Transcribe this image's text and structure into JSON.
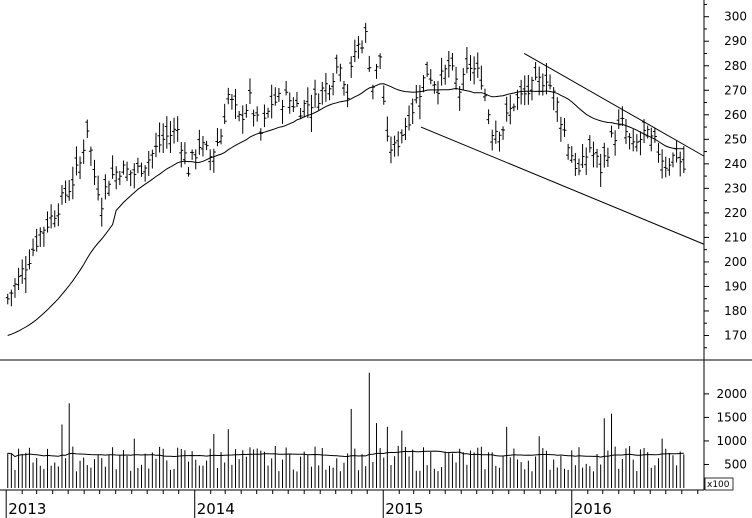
{
  "chart_data": [
    {
      "type": "ohlc",
      "panel": "price",
      "y_ticks": [
        170,
        180,
        190,
        200,
        210,
        220,
        230,
        240,
        250,
        260,
        270,
        280,
        290,
        300
      ],
      "ylim": [
        160,
        306
      ],
      "moving_average": true,
      "trend_channel": {
        "upper": {
          "x": [
            "2015-10-01",
            "2016-08-12"
          ],
          "y": [
            285,
            247
          ]
        },
        "lower": {
          "x": [
            "2015-03-15",
            "2016-08-12"
          ],
          "y": [
            255,
            210
          ]
        }
      },
      "weekly_close_anchors": [
        [
          "2013-01-04",
          185
        ],
        [
          "2013-01-25",
          193
        ],
        [
          "2013-02-15",
          202
        ],
        [
          "2013-03-08",
          212
        ],
        [
          "2013-03-29",
          218
        ],
        [
          "2013-04-19",
          225
        ],
        [
          "2013-05-10",
          233
        ],
        [
          "2013-05-24",
          240
        ],
        [
          "2013-06-07",
          255
        ],
        [
          "2013-06-21",
          235
        ],
        [
          "2013-07-05",
          225
        ],
        [
          "2013-07-19",
          234
        ],
        [
          "2013-08-09",
          238
        ],
        [
          "2013-09-06",
          236
        ],
        [
          "2013-10-04",
          242
        ],
        [
          "2013-11-01",
          250
        ],
        [
          "2013-11-29",
          254
        ],
        [
          "2013-12-20",
          238
        ],
        [
          "2014-01-10",
          248
        ],
        [
          "2014-01-31",
          243
        ],
        [
          "2014-02-21",
          252
        ],
        [
          "2014-03-07",
          268
        ],
        [
          "2014-03-28",
          258
        ],
        [
          "2014-04-18",
          266
        ],
        [
          "2014-05-09",
          252
        ],
        [
          "2014-05-30",
          265
        ],
        [
          "2014-06-27",
          267
        ],
        [
          "2014-07-25",
          263
        ],
        [
          "2014-08-22",
          266
        ],
        [
          "2014-09-19",
          274
        ],
        [
          "2014-10-10",
          282
        ],
        [
          "2014-10-24",
          268
        ],
        [
          "2014-11-07",
          286
        ],
        [
          "2014-11-28",
          292
        ],
        [
          "2014-12-12",
          272
        ],
        [
          "2014-12-26",
          284
        ],
        [
          "2015-01-09",
          248
        ],
        [
          "2015-01-23",
          246
        ],
        [
          "2015-02-13",
          256
        ],
        [
          "2015-03-06",
          266
        ],
        [
          "2015-03-27",
          278
        ],
        [
          "2015-04-17",
          272
        ],
        [
          "2015-05-08",
          280
        ],
        [
          "2015-05-29",
          270
        ],
        [
          "2015-06-19",
          280
        ],
        [
          "2015-07-10",
          275
        ],
        [
          "2015-07-31",
          254
        ],
        [
          "2015-08-21",
          255
        ],
        [
          "2015-09-11",
          265
        ],
        [
          "2015-10-02",
          268
        ],
        [
          "2015-10-23",
          272
        ],
        [
          "2015-11-13",
          276
        ],
        [
          "2015-12-04",
          264
        ],
        [
          "2015-12-25",
          248
        ],
        [
          "2016-01-15",
          236
        ],
        [
          "2016-02-05",
          247
        ],
        [
          "2016-02-26",
          238
        ],
        [
          "2016-03-18",
          250
        ],
        [
          "2016-04-08",
          256
        ],
        [
          "2016-04-29",
          246
        ],
        [
          "2016-05-20",
          252
        ],
        [
          "2016-06-10",
          248
        ],
        [
          "2016-07-01",
          240
        ],
        [
          "2016-07-22",
          244
        ],
        [
          "2016-08-05",
          238
        ]
      ]
    },
    {
      "type": "bar",
      "panel": "volume",
      "y_ticks": [
        500,
        1000,
        1500,
        2000
      ],
      "ylim": [
        0,
        2550
      ],
      "multiplier_label": "x100",
      "moving_average": true,
      "volume_spikes": [
        [
          "2013-04-19",
          1350
        ],
        [
          "2013-05-03",
          1800
        ],
        [
          "2013-09-06",
          1050
        ],
        [
          "2014-02-07",
          1150
        ],
        [
          "2014-03-07",
          1250
        ],
        [
          "2014-10-31",
          1680
        ],
        [
          "2014-12-05",
          2450
        ],
        [
          "2014-12-19",
          1380
        ],
        [
          "2015-01-09",
          1300
        ],
        [
          "2015-02-06",
          1220
        ],
        [
          "2015-08-28",
          1300
        ],
        [
          "2015-10-30",
          1100
        ],
        [
          "2016-03-04",
          1480
        ],
        [
          "2016-03-18",
          1580
        ],
        [
          "2016-06-24",
          1050
        ]
      ]
    }
  ],
  "x_axis": {
    "labels": [
      {
        "text": "2013",
        "date": "2013-01-01"
      },
      {
        "text": "2014",
        "date": "2014-01-01"
      },
      {
        "text": "2015",
        "date": "2015-01-01"
      },
      {
        "text": "2016",
        "date": "2016-01-01"
      }
    ],
    "range": [
      "2012-12-20",
      "2016-12-15"
    ]
  },
  "colors": {
    "background": "#ffffff",
    "bars": "#000000",
    "axis": "#000000"
  }
}
